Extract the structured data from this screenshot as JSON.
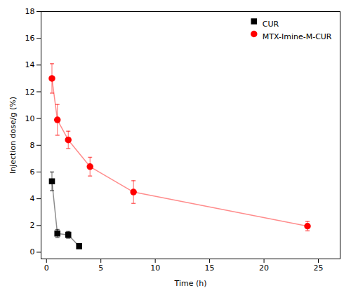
{
  "chart_data": {
    "type": "line",
    "xlabel": "Time (h)",
    "ylabel": "Injection dose/g (%)",
    "xlim": [
      -0.5,
      27
    ],
    "ylim": [
      -0.5,
      18
    ],
    "xticks": [
      0,
      5,
      10,
      15,
      20,
      25
    ],
    "yticks": [
      0,
      2,
      4,
      6,
      8,
      10,
      12,
      14,
      16,
      18
    ],
    "legend": "upper right",
    "series": [
      {
        "name": "CUR",
        "color": "#000000",
        "marker": "square",
        "x": [
          0.5,
          1.0,
          2.0,
          3.0
        ],
        "values": [
          5.3,
          1.4,
          1.3,
          0.45
        ],
        "yerr": [
          0.7,
          0.3,
          0.25,
          0.15
        ]
      },
      {
        "name": "MTX-Imine-M-CUR",
        "color": "#ff0000",
        "marker": "circle",
        "x": [
          0.5,
          1.0,
          2.0,
          4.0,
          8.0,
          24.0
        ],
        "values": [
          13.0,
          9.9,
          8.4,
          6.4,
          4.5,
          1.95
        ],
        "yerr": [
          1.1,
          1.15,
          0.65,
          0.7,
          0.85,
          0.35
        ]
      }
    ]
  }
}
